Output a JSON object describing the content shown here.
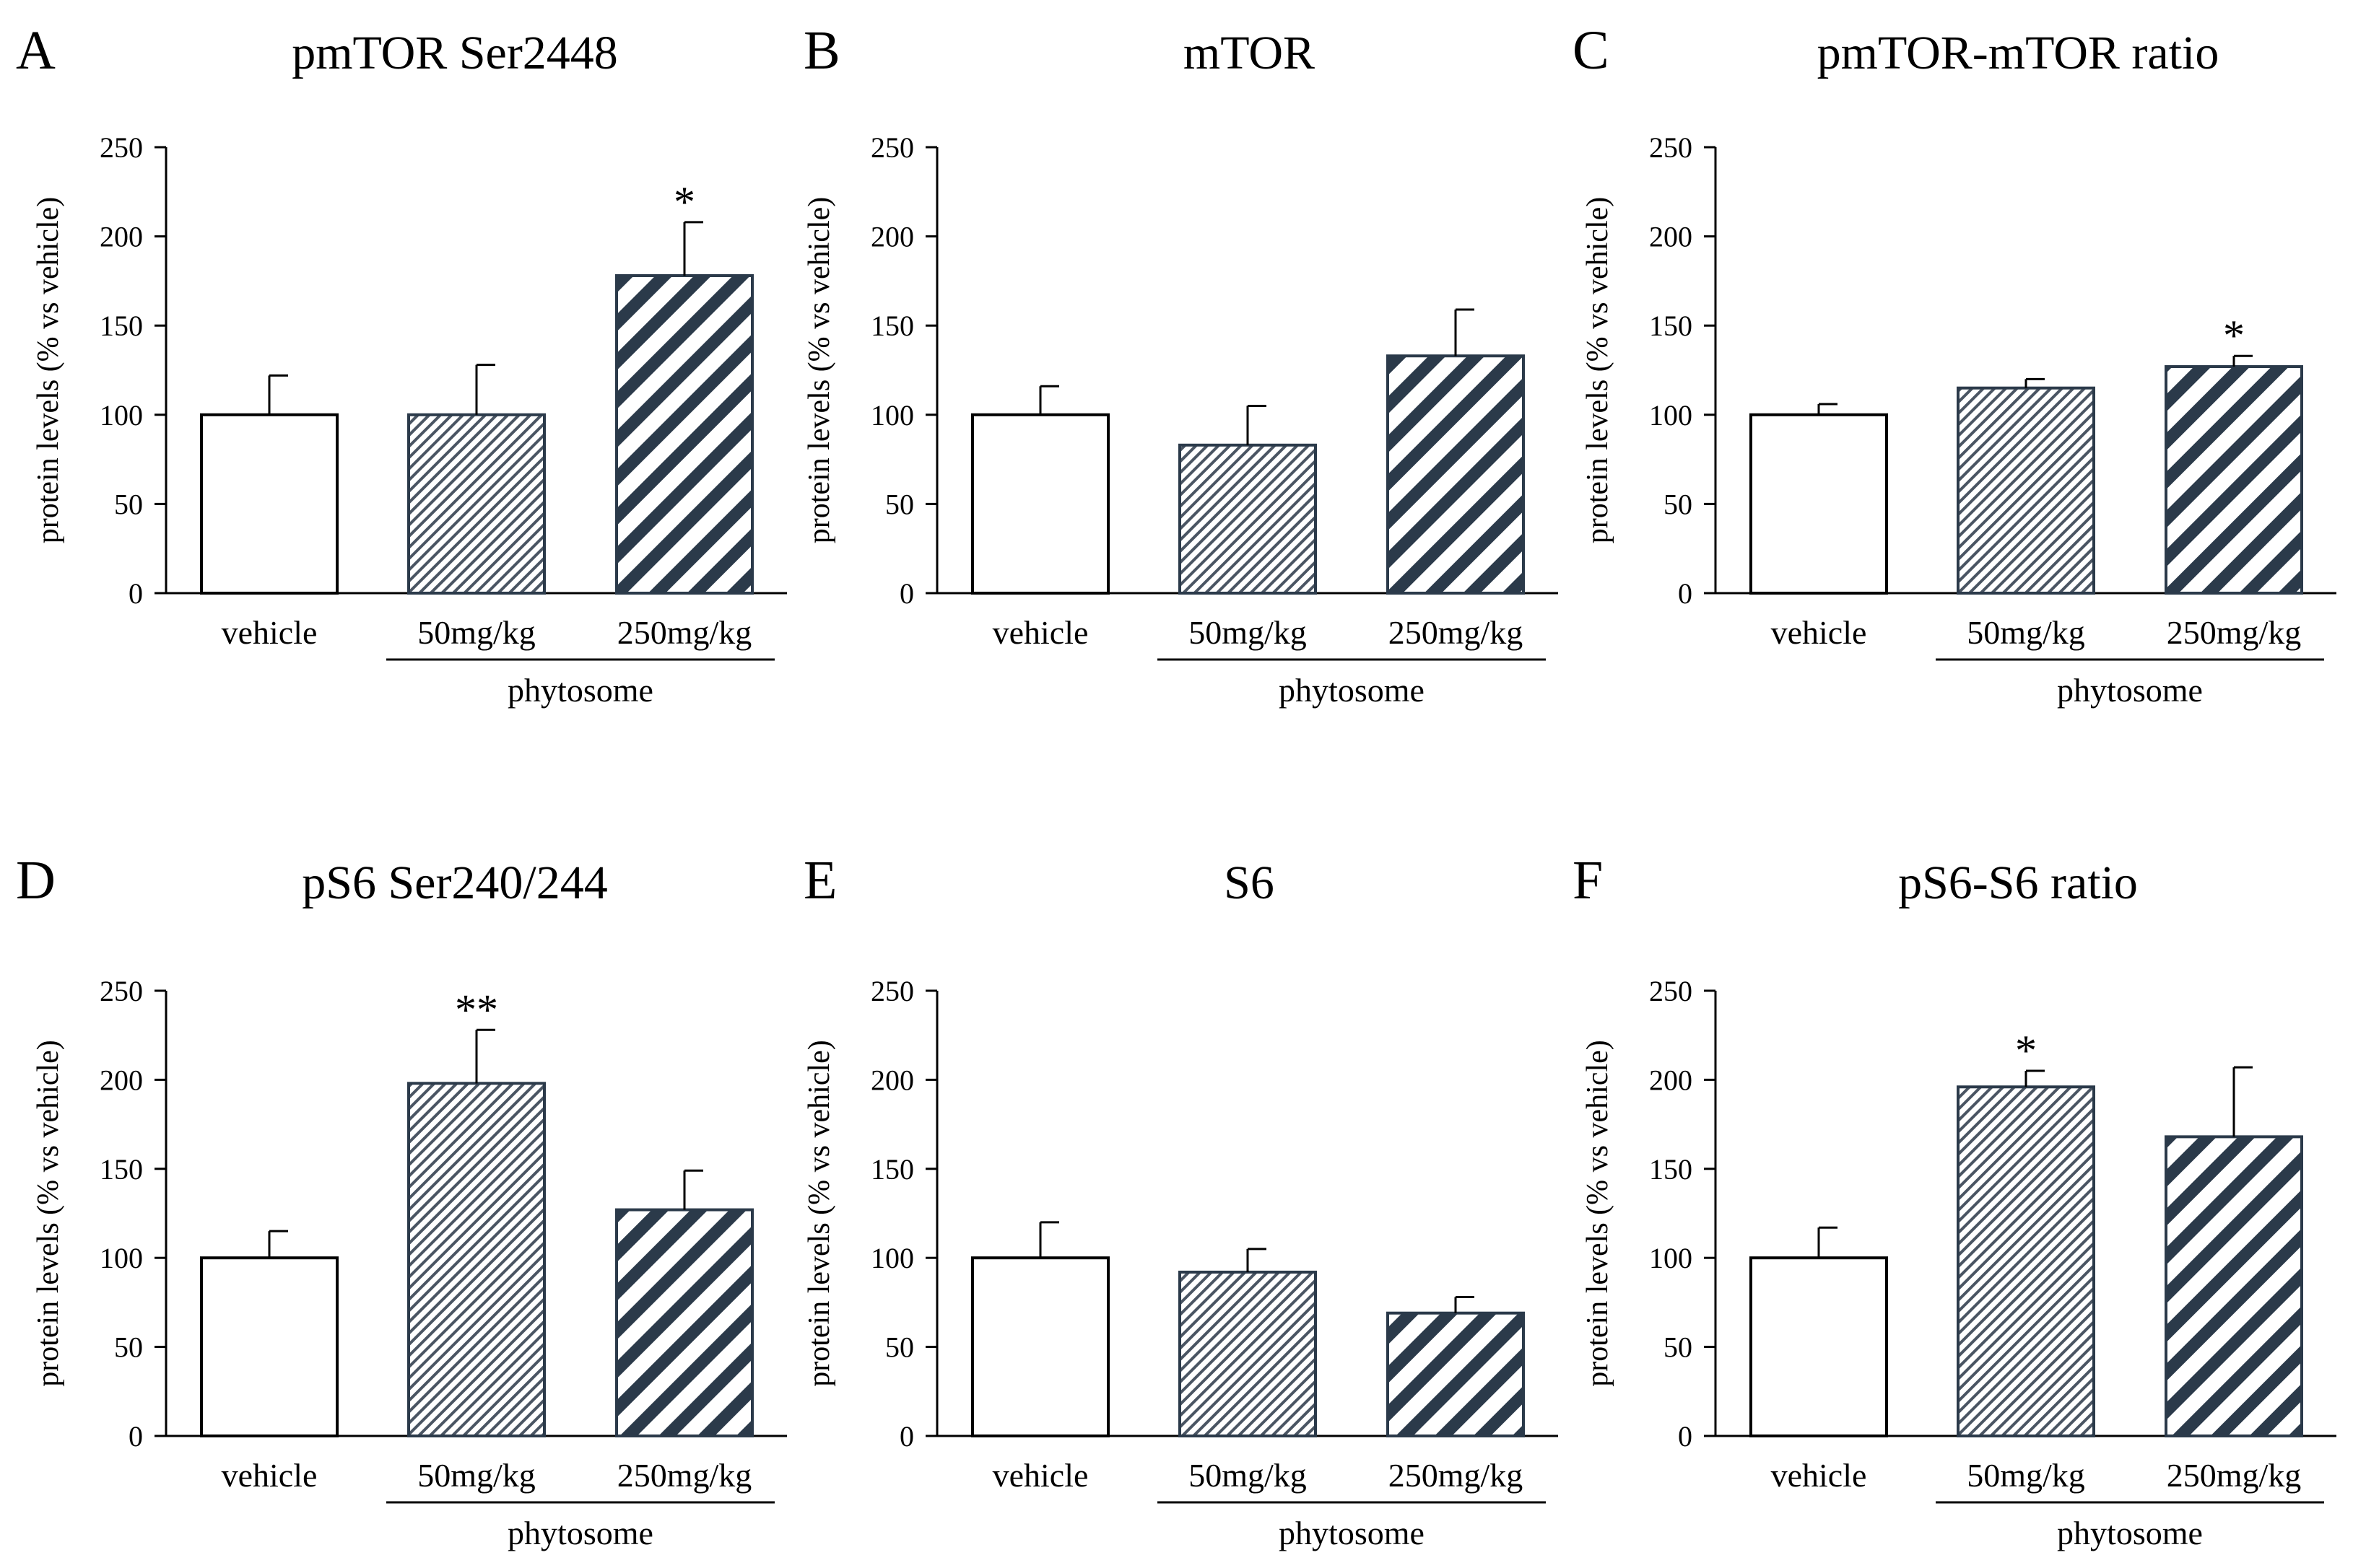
{
  "figure": {
    "y_axis_label": "protein levels (% vs vehicle)",
    "group_label": "phytosome",
    "colors": {
      "axis": "#000000",
      "hatch_dark": "#2b3a4a",
      "hatch_light": "#4a5563",
      "bar_fill": "#ffffff"
    }
  },
  "chart_data": [
    {
      "panel": "A",
      "type": "bar",
      "title": "pmTOR Ser2448",
      "categories": [
        "vehicle",
        "50mg/kg",
        "250mg/kg"
      ],
      "values": [
        100,
        100,
        178
      ],
      "errors": [
        22,
        28,
        30
      ],
      "significance": [
        "",
        "",
        "*"
      ],
      "ylabel": "protein levels (% vs vehicle)",
      "ylim": [
        0,
        250
      ],
      "yticks": [
        "0",
        "50",
        "100",
        "150",
        "200",
        "250"
      ],
      "group_label": "phytosome"
    },
    {
      "panel": "B",
      "type": "bar",
      "title": "mTOR",
      "categories": [
        "vehicle",
        "50mg/kg",
        "250mg/kg"
      ],
      "values": [
        100,
        83,
        133
      ],
      "errors": [
        16,
        22,
        26
      ],
      "significance": [
        "",
        "",
        ""
      ],
      "ylabel": "protein levels (% vs vehicle)",
      "ylim": [
        0,
        250
      ],
      "yticks": [
        "0",
        "50",
        "100",
        "150",
        "200",
        "250"
      ],
      "group_label": "phytosome"
    },
    {
      "panel": "C",
      "type": "bar",
      "title": "pmTOR-mTOR ratio",
      "categories": [
        "vehicle",
        "50mg/kg",
        "250mg/kg"
      ],
      "values": [
        100,
        115,
        127
      ],
      "errors": [
        6,
        5,
        6
      ],
      "significance": [
        "",
        "",
        "*"
      ],
      "ylabel": "protein levels (% vs vehicle)",
      "ylim": [
        0,
        250
      ],
      "yticks": [
        "0",
        "50",
        "100",
        "150",
        "200",
        "250"
      ],
      "group_label": "phytosome"
    },
    {
      "panel": "D",
      "type": "bar",
      "title": "pS6 Ser240/244",
      "categories": [
        "vehicle",
        "50mg/kg",
        "250mg/kg"
      ],
      "values": [
        100,
        198,
        127
      ],
      "errors": [
        15,
        30,
        22
      ],
      "significance": [
        "",
        "**",
        ""
      ],
      "ylabel": "protein levels (% vs vehicle)",
      "ylim": [
        0,
        250
      ],
      "yticks": [
        "0",
        "50",
        "100",
        "150",
        "200",
        "250"
      ],
      "group_label": "phytosome"
    },
    {
      "panel": "E",
      "type": "bar",
      "title": "S6",
      "categories": [
        "vehicle",
        "50mg/kg",
        "250mg/kg"
      ],
      "values": [
        100,
        92,
        69
      ],
      "errors": [
        20,
        13,
        9
      ],
      "significance": [
        "",
        "",
        ""
      ],
      "ylabel": "protein levels (% vs vehicle)",
      "ylim": [
        0,
        250
      ],
      "yticks": [
        "0",
        "50",
        "100",
        "150",
        "200",
        "250"
      ],
      "group_label": "phytosome"
    },
    {
      "panel": "F",
      "type": "bar",
      "title": "pS6-S6 ratio",
      "categories": [
        "vehicle",
        "50mg/kg",
        "250mg/kg"
      ],
      "values": [
        100,
        196,
        168
      ],
      "errors": [
        17,
        9,
        39
      ],
      "significance": [
        "",
        "*",
        ""
      ],
      "ylabel": "protein levels (% vs vehicle)",
      "ylim": [
        0,
        250
      ],
      "yticks": [
        "0",
        "50",
        "100",
        "150",
        "200",
        "250"
      ],
      "group_label": "phytosome"
    }
  ]
}
